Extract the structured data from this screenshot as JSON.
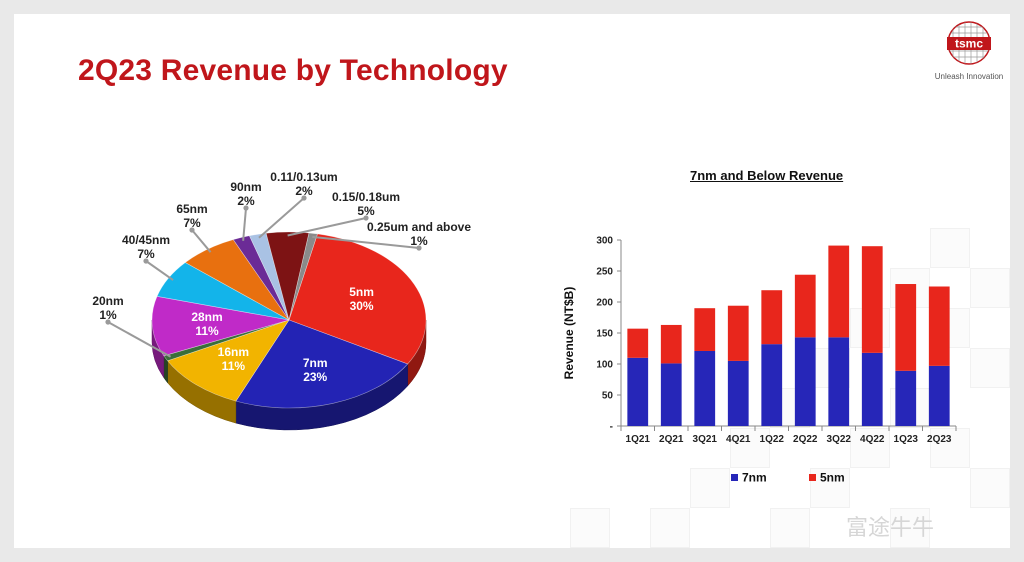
{
  "slide": {
    "title": "2Q23 Revenue by Technology",
    "logo_text": "tsmc",
    "tagline": "Unleash Innovation",
    "watermark": "富途牛牛"
  },
  "colors": {
    "title": "#c0161b",
    "7nm": "#2626b8",
    "5nm": "#e8261c"
  },
  "chart_data": [
    {
      "type": "pie",
      "title": "",
      "slices": [
        {
          "label": "5nm",
          "value": 30,
          "display": "30%",
          "color": "#e8261c"
        },
        {
          "label": "7nm",
          "value": 23,
          "display": "23%",
          "color": "#2323b4"
        },
        {
          "label": "16nm",
          "value": 11,
          "display": "11%",
          "color": "#f2b400"
        },
        {
          "label": "20nm",
          "value": 1,
          "display": "1%",
          "color": "#3a6e3a"
        },
        {
          "label": "28nm",
          "value": 11,
          "display": "11%",
          "color": "#c02ac8"
        },
        {
          "label": "40/45nm",
          "value": 7,
          "display": "7%",
          "color": "#13b4ea"
        },
        {
          "label": "65nm",
          "value": 7,
          "display": "7%",
          "color": "#e8700f"
        },
        {
          "label": "90nm",
          "value": 2,
          "display": "2%",
          "color": "#6b2b96"
        },
        {
          "label": "0.11/0.13um",
          "value": 2,
          "display": "2%",
          "color": "#a9c2e4"
        },
        {
          "label": "0.15/0.18um",
          "value": 5,
          "display": "5%",
          "color": "#7d1314"
        },
        {
          "label": "0.25um and above",
          "value": 1,
          "display": "1%",
          "color": "#8a8a8a"
        }
      ]
    },
    {
      "type": "bar",
      "stacked": true,
      "title": "7nm and Below Revenue",
      "ylabel": "Revenue (NT$B)",
      "xlabel": "",
      "ylim": [
        0,
        300
      ],
      "yticks": [
        "-",
        "50",
        "100",
        "150",
        "200",
        "250",
        "300"
      ],
      "categories": [
        "1Q21",
        "2Q21",
        "3Q21",
        "4Q21",
        "1Q22",
        "2Q22",
        "3Q22",
        "4Q22",
        "1Q23",
        "2Q23"
      ],
      "series": [
        {
          "name": "7nm",
          "color": "#2626b8",
          "values": [
            110,
            101,
            121,
            105,
            132,
            143,
            143,
            118,
            89,
            97
          ]
        },
        {
          "name": "5nm",
          "color": "#e8261c",
          "values": [
            47,
            62,
            69,
            89,
            87,
            101,
            148,
            172,
            140,
            128
          ]
        }
      ],
      "legend": "bottom"
    }
  ]
}
